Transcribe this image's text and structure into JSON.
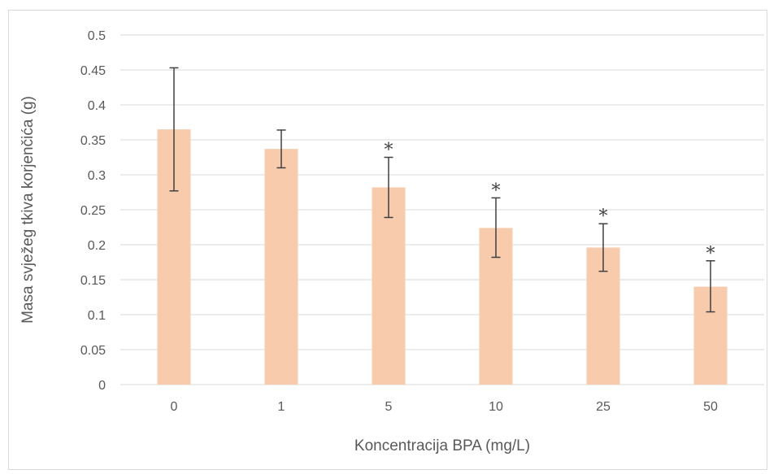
{
  "chart_data": {
    "type": "bar",
    "title": "",
    "xlabel": "Koncentracija BPA (mg/L)",
    "ylabel": "Masa svježeg tkiva korjenčića (g)",
    "categories": [
      "0",
      "1",
      "5",
      "10",
      "25",
      "50"
    ],
    "values": [
      0.365,
      0.337,
      0.282,
      0.224,
      0.196,
      0.14
    ],
    "error_low": [
      0.277,
      0.31,
      0.239,
      0.182,
      0.162,
      0.104
    ],
    "error_high": [
      0.453,
      0.364,
      0.325,
      0.267,
      0.23,
      0.177
    ],
    "significance": [
      "",
      "",
      "*",
      "*",
      "*",
      "*"
    ],
    "ylim": [
      0,
      0.5
    ],
    "yticks": [
      "0",
      "0.05",
      "0.1",
      "0.15",
      "0.2",
      "0.25",
      "0.3",
      "0.35",
      "0.4",
      "0.45",
      "0.5"
    ],
    "grid": true,
    "legend": "none",
    "bar_color": "#f8cbad",
    "error_color": "#404040",
    "grid_color": "#d9d9d9"
  }
}
